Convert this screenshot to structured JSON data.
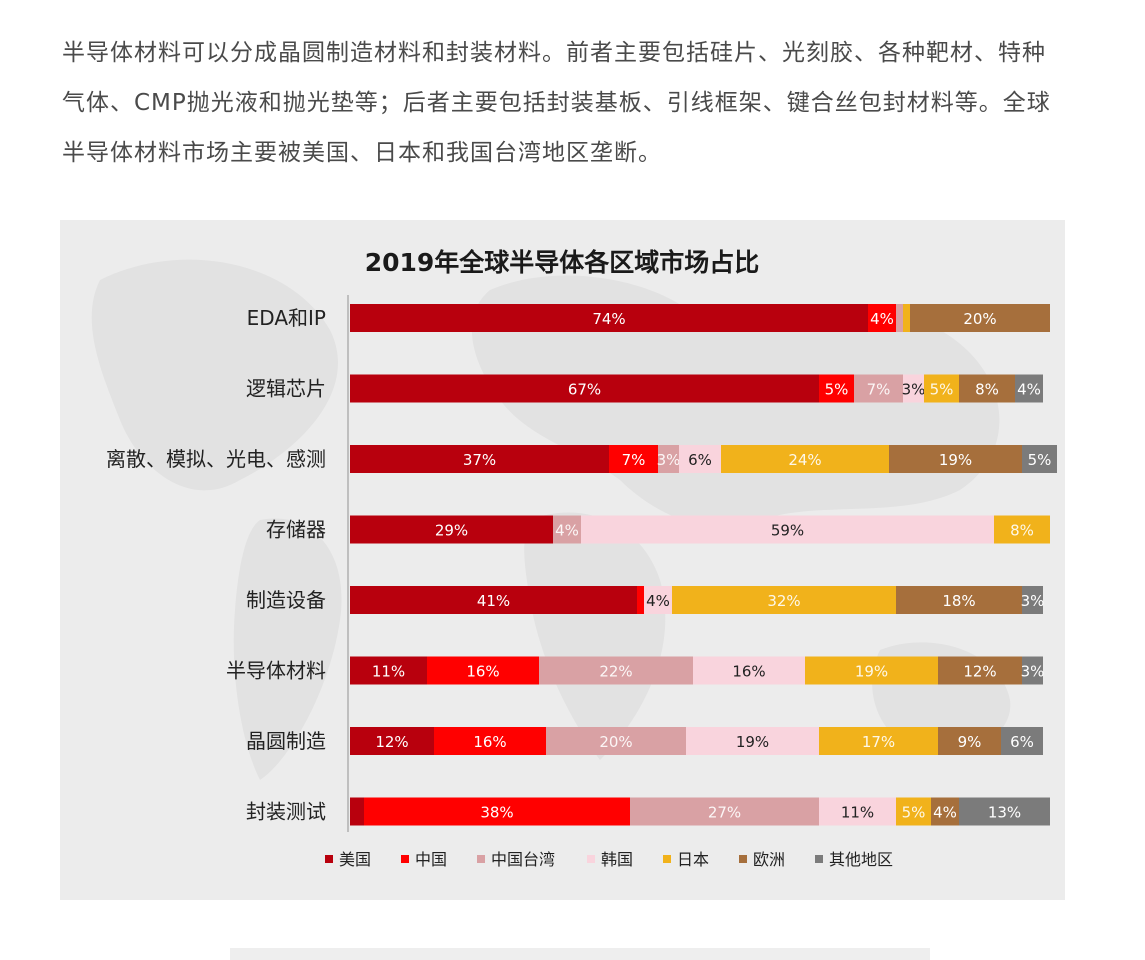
{
  "intro_text": "半导体材料可以分成晶圆制造材料和封装材料。前者主要包括硅片、光刻胶、各种靶材、特种气体、CMP抛光液和抛光垫等；后者主要包括封装基板、引线框架、键合丝包封材料等。全球半导体材料市场主要被美国、日本和我国台湾地区垄断。",
  "colors": {
    "美国": "#b8000d",
    "中国": "#ff0000",
    "中国台湾": "#d9a1a4",
    "韩国": "#f9d4dd",
    "日本": "#f1b21b",
    "欧洲": "#a66f3c",
    "其他地区": "#7b7b7b"
  },
  "chart_data": {
    "type": "bar",
    "orientation": "horizontal",
    "stacked": true,
    "title": "2019年全球半导体各区域市场占比",
    "categories": [
      "EDA和IP",
      "逻辑芯片",
      "离散、模拟、光电、感测",
      "存储器",
      "制造设备",
      "半导体材料",
      "晶圆制造",
      "封装测试"
    ],
    "series": [
      {
        "name": "美国",
        "values": [
          74,
          67,
          37,
          29,
          41,
          11,
          12,
          2
        ]
      },
      {
        "name": "中国",
        "values": [
          4,
          5,
          7,
          0,
          1,
          16,
          16,
          38
        ]
      },
      {
        "name": "中国台湾",
        "values": [
          1,
          7,
          3,
          4,
          0,
          22,
          20,
          27
        ]
      },
      {
        "name": "韩国",
        "values": [
          0,
          3,
          6,
          59,
          4,
          16,
          19,
          11
        ]
      },
      {
        "name": "日本",
        "values": [
          1,
          5,
          24,
          8,
          32,
          19,
          17,
          5
        ]
      },
      {
        "name": "欧洲",
        "values": [
          20,
          8,
          19,
          0,
          18,
          12,
          9,
          4
        ]
      },
      {
        "name": "其他地区",
        "values": [
          0,
          4,
          5,
          0,
          3,
          3,
          6,
          13
        ]
      }
    ],
    "labels": [
      [
        "74%",
        "4%",
        "",
        "",
        "",
        "20%",
        ""
      ],
      [
        "67%",
        "5%",
        "7%",
        "3%",
        "5%",
        "8%",
        "4%"
      ],
      [
        "37%",
        "7%",
        "3%",
        "6%",
        "24%",
        "19%",
        "5%"
      ],
      [
        "29%",
        "",
        "4%",
        "59%",
        "8%",
        "",
        ""
      ],
      [
        "41%",
        "",
        "",
        "4%",
        "32%",
        "18%",
        "3%"
      ],
      [
        "11%",
        "16%",
        "22%",
        "16%",
        "19%",
        "12%",
        "3%"
      ],
      [
        "12%",
        "16%",
        "20%",
        "19%",
        "17%",
        "9%",
        "6%"
      ],
      [
        "",
        "38%",
        "27%",
        "11%",
        "5%",
        "4%",
        "13%"
      ]
    ],
    "xlim": [
      0,
      100
    ],
    "legend_position": "bottom"
  }
}
